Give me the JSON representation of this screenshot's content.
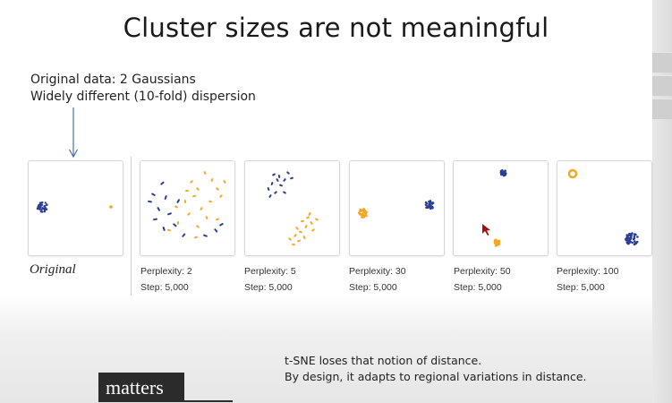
{
  "slide": {
    "title": "Cluster sizes are not meaningful",
    "annotation_line1": "Original data: 2 Gaussians",
    "annotation_line2": "Widely different (10-fold) dispersion",
    "original_label": "Original",
    "note_line1": "t-SNE loses that notion of distance.",
    "note_line2": "By design, it adapts to regional variations in distance."
  },
  "panels": [
    {
      "perplexity": "Perplexity: 2",
      "step": "Step: 5,000"
    },
    {
      "perplexity": "Perplexity: 5",
      "step": "Step: 5,000"
    },
    {
      "perplexity": "Perplexity: 30",
      "step": "Step: 5,000"
    },
    {
      "perplexity": "Perplexity: 50",
      "step": "Step: 5,000"
    },
    {
      "perplexity": "Perplexity: 100",
      "step": "Step: 5,000"
    }
  ],
  "colors": {
    "blue": "#2a3f94",
    "orange": "#f5a623",
    "cursor": "#a01010"
  },
  "subtitle": {
    "word": "matters"
  }
}
